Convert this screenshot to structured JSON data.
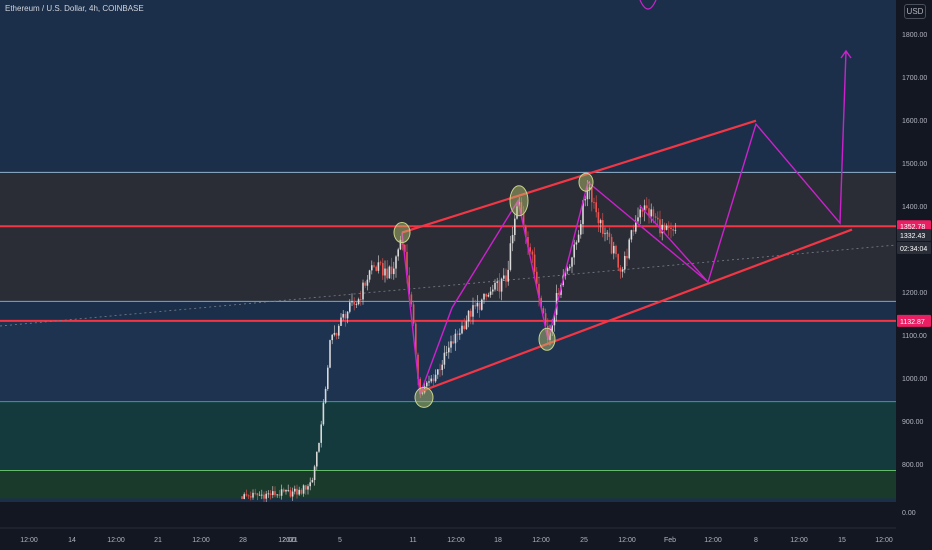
{
  "header": {
    "symbol_title": "Ethereum / U.S. Dollar, 4h, COINBASE",
    "currency": "USD"
  },
  "chart_data": {
    "type": "candlestick",
    "title": "Ethereum / U.S. Dollar, 4h, COINBASE",
    "y_axis": {
      "ticks": [
        "1800.00",
        "1700.00",
        "1600.00",
        "1500.00",
        "1400.00",
        "1300.00",
        "1200.00",
        "1100.00",
        "1000.00",
        "900.00",
        "800.00",
        "0.00"
      ],
      "position": "right"
    },
    "x_axis": {
      "ticks": [
        "12:00",
        "14",
        "12:00",
        "21",
        "12:00",
        "28",
        "12:00",
        "2021",
        "5",
        "11",
        "12:00",
        "18",
        "12:00",
        "25",
        "12:00",
        "Feb",
        "12:00",
        "8",
        "12:00",
        "15",
        "12:00"
      ]
    },
    "price_labels": [
      {
        "text": "1352.78",
        "color": "#e91e63"
      },
      {
        "text": "1332.43",
        "color": "#2a2e39"
      },
      {
        "text": "02:34:04",
        "color": "#2a2e39"
      },
      {
        "text": "1132.87",
        "color": "#e91e63"
      }
    ],
    "horizontal_levels": [
      {
        "price": 1352.78,
        "color": "#f23645"
      },
      {
        "price": 1132.87,
        "color": "#f23645"
      },
      {
        "price": 1478,
        "color": "#8fb3cf"
      },
      {
        "price": 1178,
        "color": "#7fa6c8"
      },
      {
        "price": 945,
        "color": "#26a69a"
      },
      {
        "price": 785,
        "color": "#66bb6a"
      }
    ],
    "zones": [
      {
        "from": 1178,
        "to": 1478,
        "color": "#2a2d36"
      },
      {
        "from": 945,
        "to": 1132.87,
        "color": "#1e3350"
      },
      {
        "from": 785,
        "to": 945,
        "color": "#153a3e"
      },
      {
        "from": 720,
        "to": 785,
        "color": "#1a3a2c"
      }
    ],
    "channel": {
      "upper": {
        "from": {
          "x": "11",
          "y": 1338
        },
        "to": {
          "x": "8",
          "y": 1598
        }
      },
      "lower": {
        "from": {
          "x": "11",
          "y": 968
        },
        "to": {
          "x": "15",
          "y": 1345
        }
      }
    },
    "projection_path": [
      1338,
      962,
      1163,
      1412,
      1090,
      1455,
      1223,
      1590,
      1360,
      1760
    ],
    "pivot_marks": [
      1338,
      962,
      1412,
      1090,
      1455
    ],
    "color_bull": "#d9d9d9",
    "color_bear": "#ef5350",
    "color_channel": "#f23645",
    "color_projection": "#cc22cc",
    "grid": false
  }
}
